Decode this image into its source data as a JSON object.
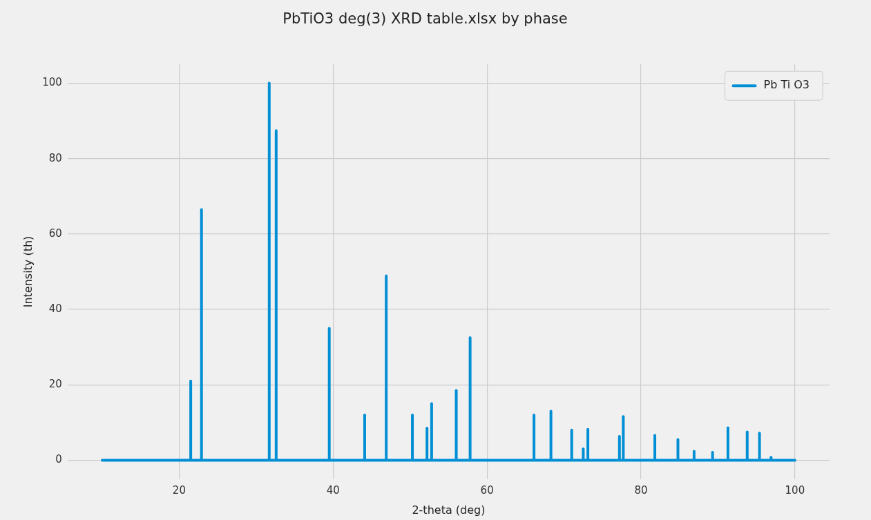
{
  "chart_data": {
    "type": "line",
    "title": "PbTiO3 deg(3) XRD table.xlsx by phase",
    "xlabel": "2-theta (deg)",
    "ylabel": "Intensity (th)",
    "xlim": [
      5.5,
      104.5
    ],
    "ylim": [
      -5,
      105
    ],
    "xticks": [
      20,
      40,
      60,
      80,
      100
    ],
    "yticks": [
      0,
      20,
      40,
      60,
      80,
      100
    ],
    "grid": true,
    "legend": "top right",
    "marker": "none",
    "line_style": "solid",
    "series": [
      {
        "name": "Pb Ti O3",
        "color": "#008fd5",
        "x": [
          10,
          21.5,
          21.5,
          21.5,
          22.9,
          22.9,
          22.9,
          31.7,
          31.7,
          31.7,
          32.6,
          32.6,
          32.6,
          39.5,
          39.5,
          39.5,
          44.1,
          44.1,
          44.1,
          46.9,
          46.9,
          46.9,
          50.3,
          50.3,
          50.3,
          52.2,
          52.2,
          52.2,
          52.8,
          52.8,
          52.8,
          56.0,
          56.0,
          56.0,
          57.8,
          57.8,
          57.8,
          66.1,
          66.1,
          66.1,
          68.3,
          68.3,
          68.3,
          71.0,
          71.0,
          71.0,
          72.5,
          72.5,
          72.5,
          73.1,
          73.1,
          73.1,
          77.2,
          77.2,
          77.2,
          77.7,
          77.7,
          77.7,
          81.8,
          81.8,
          81.8,
          84.8,
          84.8,
          84.8,
          86.9,
          86.9,
          86.9,
          89.3,
          89.3,
          89.3,
          91.3,
          91.3,
          91.3,
          93.8,
          93.8,
          93.8,
          95.4,
          95.4,
          95.4,
          96.9,
          96.9,
          96.9,
          100
        ],
        "values": [
          0,
          0,
          21,
          0,
          0,
          66.5,
          0,
          0,
          100,
          0,
          0,
          87.4,
          0,
          0,
          35,
          0,
          0,
          12,
          0,
          0,
          48.9,
          0,
          0,
          12,
          0,
          0,
          8.5,
          0,
          0,
          15,
          0,
          0,
          18.5,
          0,
          0,
          32.5,
          0,
          0,
          12,
          0,
          0,
          13,
          0,
          0,
          8,
          0,
          0,
          3,
          0,
          0,
          8.2,
          0,
          0,
          6.3,
          0,
          0,
          11.6,
          0,
          0,
          6.6,
          0,
          0,
          5.5,
          0,
          0,
          2.4,
          0,
          0,
          2.1,
          0,
          0,
          8.6,
          0,
          0,
          7.5,
          0,
          0,
          7.2,
          0,
          0,
          0.8,
          0,
          0
        ]
      }
    ]
  }
}
